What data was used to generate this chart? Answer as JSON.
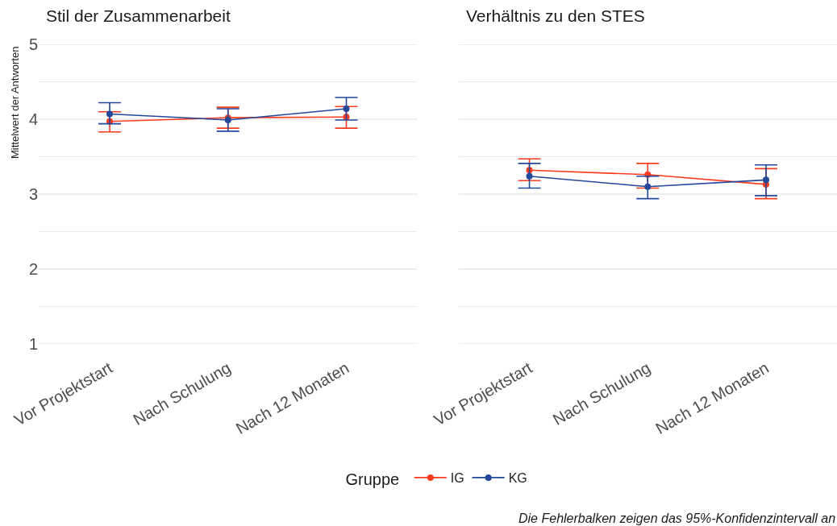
{
  "chart_data": [
    {
      "type": "line",
      "title": "Stil der Zusammenarbeit",
      "ylabel": "Mittelwert der Antworten",
      "legend_title": "Gruppe",
      "legend": "bottom",
      "categories": [
        "Vor Projektstart",
        "Nach Schulung",
        "Nach 12 Monaten"
      ],
      "ylim": [
        1,
        5
      ],
      "yticks": [
        1,
        {
          "value": 1.5,
          "label": null
        },
        2,
        {
          "value": 2.5,
          "label": null
        },
        3,
        {
          "value": 3.5,
          "label": null
        },
        4,
        {
          "value": 4.5,
          "label": null
        },
        5
      ],
      "grid": "y",
      "marker": "circle",
      "line_style": "solid",
      "series": [
        {
          "name": "IG",
          "color": "#fc3b1e",
          "values": [
            3.97,
            4.02,
            4.03
          ],
          "errors": [
            [
              3.83,
              4.1
            ],
            [
              3.88,
              4.16
            ],
            [
              3.88,
              4.17
            ]
          ]
        },
        {
          "name": "KG",
          "color": "#22479b",
          "values": [
            4.07,
            3.99,
            4.14
          ],
          "errors": [
            [
              3.94,
              4.22
            ],
            [
              3.84,
              4.14
            ],
            [
              3.99,
              4.29
            ]
          ]
        }
      ]
    },
    {
      "type": "line",
      "title": "Verhältnis zu den STES",
      "categories": [
        "Vor Projektstart",
        "Nach Schulung",
        "Nach 12 Monaten"
      ],
      "ylim": [
        1,
        5
      ],
      "yticks": [
        1,
        {
          "value": 1.5,
          "label": null
        },
        2,
        {
          "value": 2.5,
          "label": null
        },
        3,
        {
          "value": 3.5,
          "label": null
        },
        4,
        {
          "value": 4.5,
          "label": null
        },
        5
      ],
      "grid": "y",
      "tick_labels": "x",
      "marker": "circle",
      "line_style": "solid",
      "series": [
        {
          "name": "IG",
          "color": "#fc3b1e",
          "values": [
            3.32,
            3.26,
            3.13
          ],
          "errors": [
            [
              3.18,
              3.47
            ],
            [
              3.08,
              3.41
            ],
            [
              2.94,
              3.34
            ]
          ]
        },
        {
          "name": "KG",
          "color": "#22479b",
          "values": [
            3.24,
            3.1,
            3.19
          ],
          "errors": [
            [
              3.08,
              3.41
            ],
            [
              2.94,
              3.24
            ],
            [
              2.98,
              3.39
            ]
          ]
        }
      ],
      "annotations": [
        "Die Fehlerbalken zeigen das 95%-Konfidenzintervall an"
      ]
    }
  ]
}
